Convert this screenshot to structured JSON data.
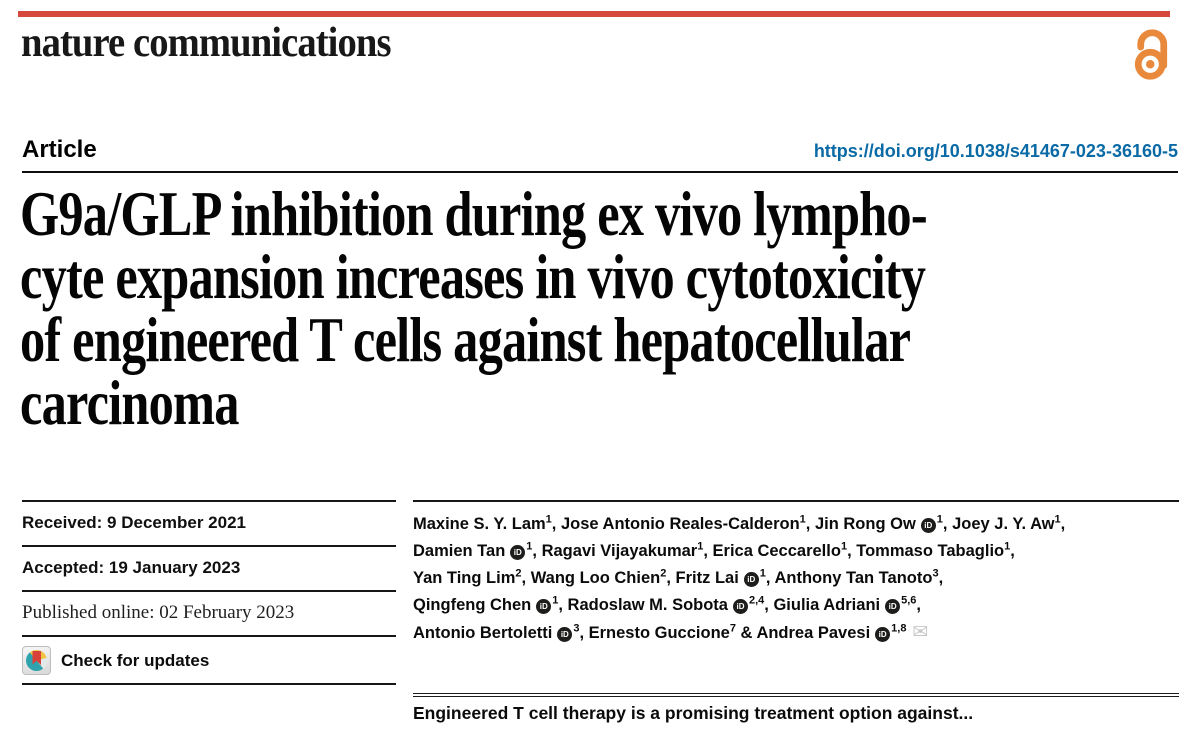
{
  "brand": {
    "logo": "nature communications",
    "bar_color": "#d6483b"
  },
  "open_access": {
    "color": "#e8893c"
  },
  "article": {
    "kicker": "Article",
    "doi": "https://doi.org/10.1038/s41467-023-36160-5",
    "doi_color": "#0a6aa6"
  },
  "title": {
    "lines": [
      "G9a/GLP inhibition during ex vivo lympho-",
      "cyte expansion increases in vivo cytotoxicity",
      "of engineered T cells against hepatocellular",
      "carcinoma"
    ]
  },
  "dates": {
    "received": "Received: 9 December 2021",
    "accepted": "Accepted: 19 January 2023",
    "published": "Published online: 02 February 2023"
  },
  "check_for_updates": {
    "label": "Check for updates"
  },
  "authors": {
    "orcid_glyph": "iD",
    "envelope_glyph": "✉",
    "lines": [
      [
        {
          "name": "Maxine S. Y. Lam",
          "sup": "1",
          "sep": ", "
        },
        {
          "name": "Jose Antonio Reales-Calderon",
          "sup": "1",
          "sep": ", "
        },
        {
          "name": "Jin Rong Ow",
          "orcid": true,
          "sup": "1",
          "sep": ", "
        },
        {
          "name": "Joey J. Y. Aw",
          "sup": "1",
          "sep": ","
        }
      ],
      [
        {
          "name": "Damien Tan",
          "orcid": true,
          "sup": "1",
          "sep": ", "
        },
        {
          "name": "Ragavi Vijayakumar",
          "sup": "1",
          "sep": ", "
        },
        {
          "name": "Erica Ceccarello",
          "sup": "1",
          "sep": ", "
        },
        {
          "name": "Tommaso Tabaglio",
          "sup": "1",
          "sep": ","
        }
      ],
      [
        {
          "name": "Yan Ting Lim",
          "sup": "2",
          "sep": ", "
        },
        {
          "name": "Wang Loo Chien",
          "sup": "2",
          "sep": ", "
        },
        {
          "name": "Fritz Lai",
          "orcid": true,
          "sup": "1",
          "sep": ", "
        },
        {
          "name": "Anthony Tan Tanoto",
          "sup": "3",
          "sep": ","
        }
      ],
      [
        {
          "name": "Qingfeng Chen",
          "orcid": true,
          "sup": "1",
          "sep": ", "
        },
        {
          "name": "Radoslaw M. Sobota",
          "orcid": true,
          "sup": "2,4",
          "sep": ", "
        },
        {
          "name": "Giulia Adriani",
          "orcid": true,
          "sup": "5,6",
          "sep": ","
        }
      ],
      [
        {
          "name": "Antonio Bertoletti",
          "orcid": true,
          "sup": "3",
          "sep": ", "
        },
        {
          "name": "Ernesto Guccione",
          "sup": "7",
          "sep": " & "
        },
        {
          "name": "Andrea Pavesi",
          "orcid": true,
          "sup": "1,8",
          "envelope": true
        }
      ]
    ]
  },
  "abstract": {
    "first_line": "Engineered T cell therapy is a promising treatment option against..."
  }
}
